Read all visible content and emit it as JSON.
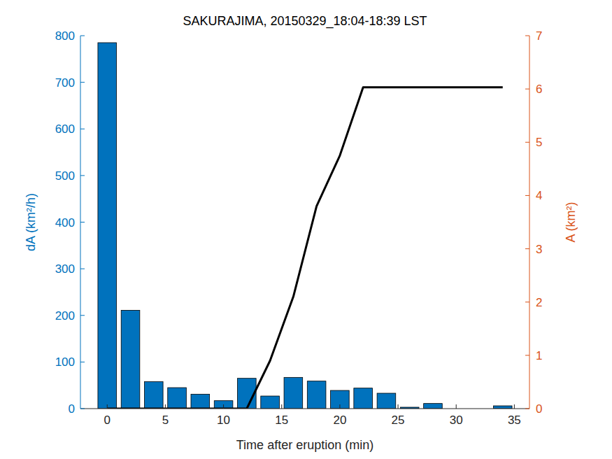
{
  "chart_data": {
    "type": "bar",
    "title": "SAKURAJIMA, 20150329_18:04-18:39 LST",
    "x_label": "Time after eruption (min)",
    "y_label": "dA (km²/h)",
    "y2_label": "A (km²)",
    "x": [
      0,
      2,
      4,
      6,
      8,
      10,
      12,
      14,
      16,
      18,
      20,
      22,
      24,
      26,
      28,
      30,
      32,
      34
    ],
    "series": [
      {
        "name": "dA",
        "type": "bar",
        "color": "#0072BD",
        "values": [
          785,
          211,
          58,
          45,
          31,
          17,
          65,
          27,
          67,
          59,
          39,
          44,
          33,
          3,
          11,
          0,
          0,
          6
        ]
      },
      {
        "name": "A",
        "type": "line",
        "axis": "y2",
        "color": "#000000",
        "values": [
          0,
          0,
          0,
          0,
          0,
          0,
          0,
          0.9,
          2.1,
          3.8,
          4.75,
          6.03,
          6.03,
          6.03,
          6.03,
          6.03,
          6.03,
          6.03
        ]
      }
    ],
    "xlim": [
      -2.3,
      36.3
    ],
    "xticks": [
      0,
      5,
      10,
      15,
      20,
      25,
      30,
      35
    ],
    "ylim": [
      0,
      800
    ],
    "yticks": [
      0,
      100,
      200,
      300,
      400,
      500,
      600,
      700,
      800
    ],
    "y2lim": [
      0,
      7
    ],
    "y2ticks": [
      0,
      1,
      2,
      3,
      4,
      5,
      6,
      7
    ],
    "y_color": "#0072BD",
    "y2_color": "#D95319",
    "grid": false
  }
}
